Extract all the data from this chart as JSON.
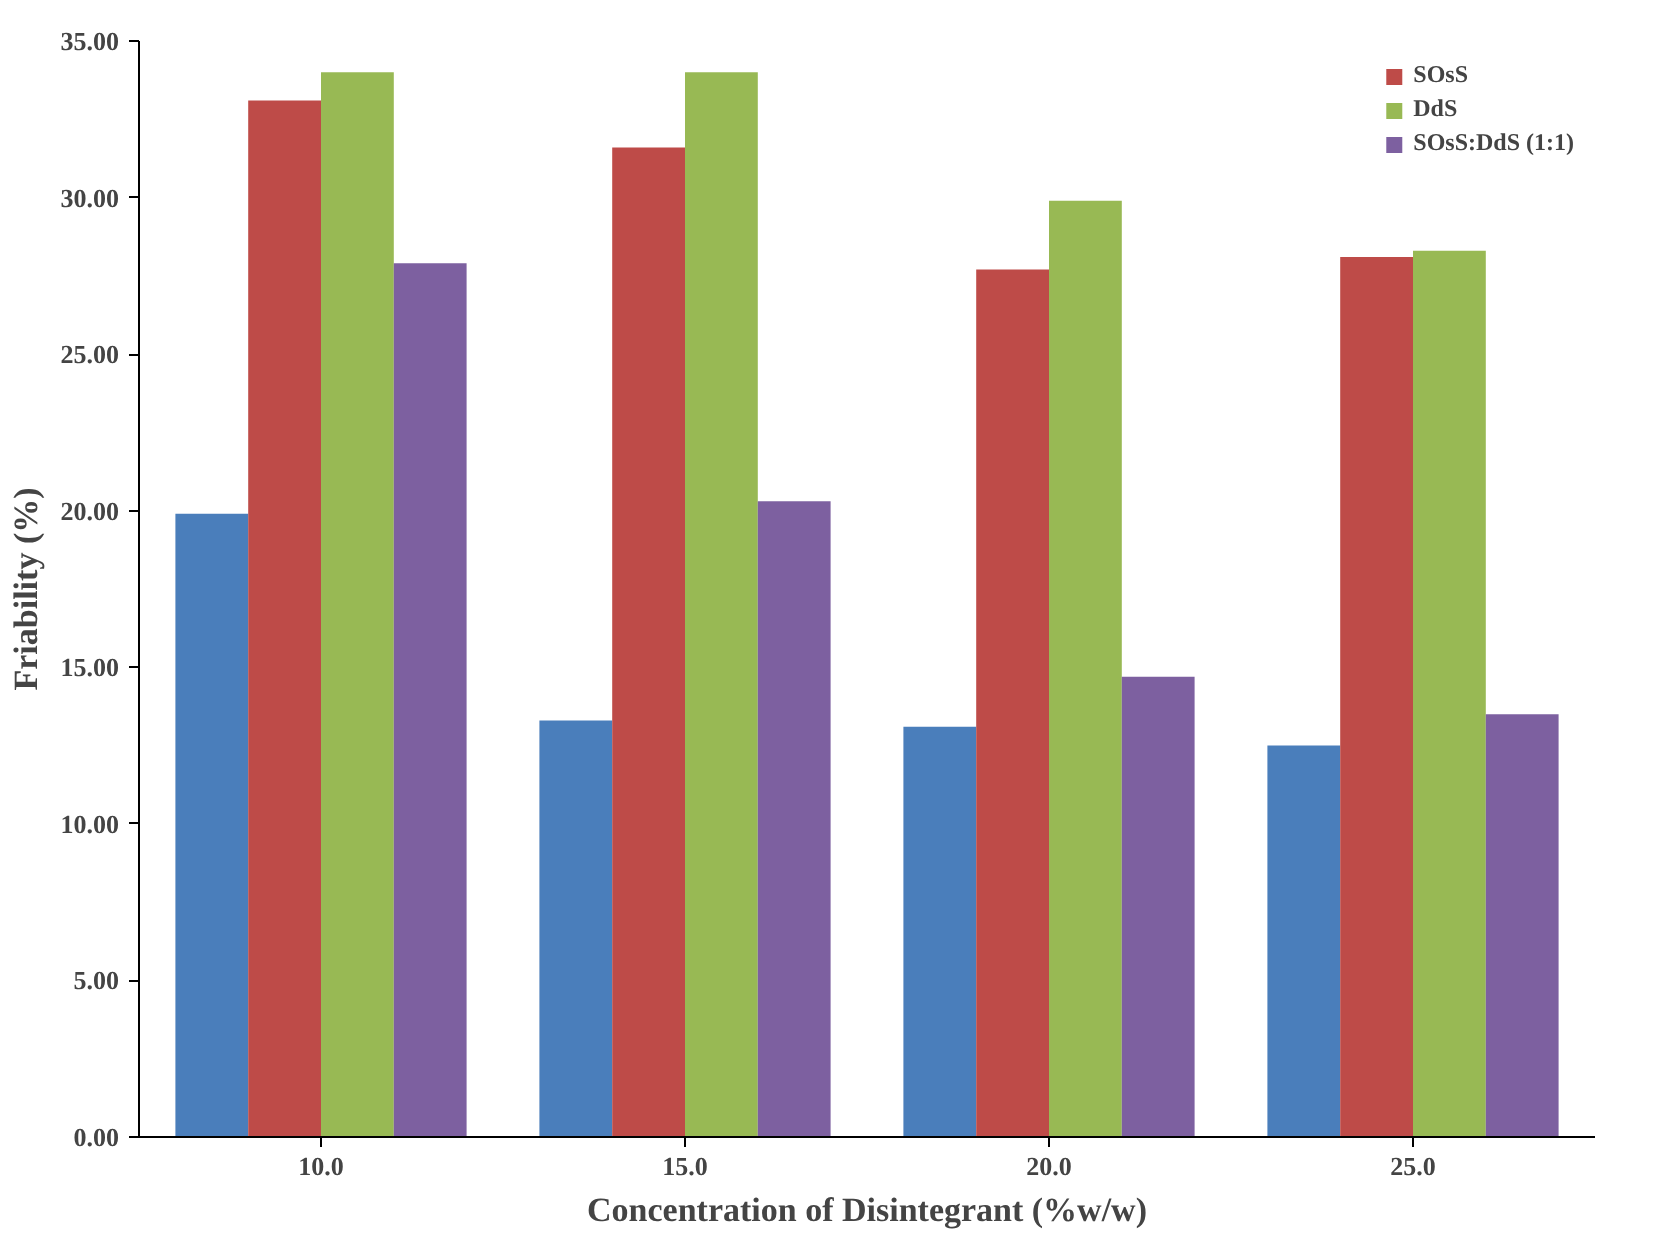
{
  "chart_data": {
    "type": "bar",
    "xlabel": "Concentration of Disintegrant (%w/w)",
    "ylabel": "Friability (%)",
    "categories": [
      "10.0",
      "15.0",
      "20.0",
      "25.0"
    ],
    "series": [
      {
        "color": "#4a7ebb",
        "values": [
          19.9,
          13.3,
          13.1,
          12.5
        ]
      },
      {
        "name": "SOsS",
        "color": "#be4b48",
        "values": [
          33.1,
          31.6,
          27.7,
          28.1
        ]
      },
      {
        "name": "DdS",
        "color": "#98b954",
        "values": [
          34.0,
          34.0,
          29.9,
          28.3
        ]
      },
      {
        "name": "SOsS:DdS (1:1)",
        "color": "#7d60a0",
        "values": [
          27.9,
          20.3,
          14.7,
          13.5
        ]
      }
    ],
    "ylim": [
      0,
      35
    ],
    "yticks": [
      {
        "value": 0,
        "label": "0.00"
      },
      {
        "value": 5,
        "label": "5.00"
      },
      {
        "value": 10,
        "label": "10.00"
      },
      {
        "value": 15,
        "label": "15.00"
      },
      {
        "value": 20,
        "label": "20.00"
      },
      {
        "value": 25,
        "label": "25.00"
      },
      {
        "value": 30,
        "label": "30.00"
      },
      {
        "value": 35,
        "label": "35.00"
      }
    ],
    "grid": false,
    "legend": "top right"
  }
}
